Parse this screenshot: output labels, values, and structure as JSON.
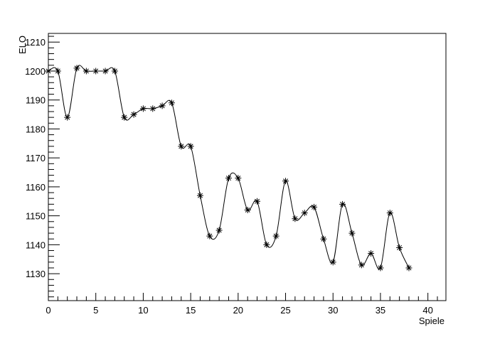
{
  "chart_data": {
    "type": "line",
    "xlabel": "Spiele",
    "ylabel": "ELO",
    "x": [
      0,
      1,
      2,
      3,
      4,
      5,
      6,
      7,
      8,
      9,
      10,
      11,
      12,
      13,
      14,
      15,
      16,
      17,
      18,
      19,
      20,
      21,
      22,
      23,
      24,
      25,
      26,
      27,
      28,
      29,
      30,
      31,
      32,
      33,
      34,
      35,
      36,
      37,
      38
    ],
    "series": [
      {
        "color": "#000000",
        "values": [
          1200,
          1200,
          1184,
          1201,
          1200,
          1200,
          1200,
          1200,
          1184,
          1185,
          1187,
          1187,
          1188,
          1189,
          1174,
          1174,
          1157,
          1143,
          1145,
          1163,
          1163,
          1152,
          1155,
          1140,
          1143,
          1162,
          1149,
          1151,
          1153,
          1142,
          1134,
          1154,
          1144,
          1133,
          1137,
          1132,
          1151,
          1139,
          1132
        ]
      }
    ],
    "xlim": [
      0,
      41.9
    ],
    "ylim": [
      1120.7,
      1213
    ],
    "xticks": [
      0,
      5,
      10,
      15,
      20,
      25,
      30,
      35,
      40
    ],
    "yticks": [
      1130,
      1140,
      1150,
      1160,
      1170,
      1180,
      1190,
      1200,
      1210
    ]
  }
}
